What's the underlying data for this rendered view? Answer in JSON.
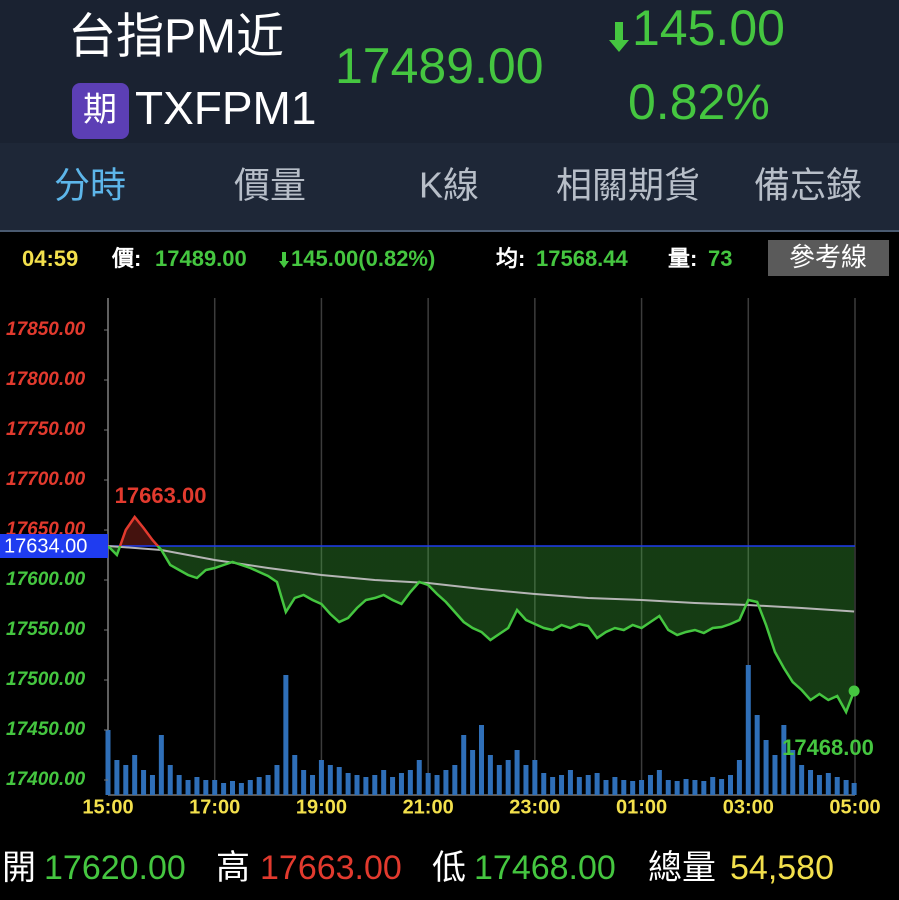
{
  "header": {
    "title": "台指PM近",
    "badge": "期",
    "symbol": "TXFPM1",
    "price": "17489.00",
    "change": "145.00",
    "change_pct": "0.82%"
  },
  "tabs": [
    "分時",
    "價量",
    "K線",
    "相關期貨",
    "備忘錄"
  ],
  "active_tab": 0,
  "info": {
    "time": "04:59",
    "price_label": "價:",
    "price": "17489.00",
    "change": "145.00(0.82%)",
    "avg_label": "均:",
    "avg": "17568.44",
    "vol_label": "量:",
    "vol": "73",
    "button": "參考線"
  },
  "footer": [
    {
      "label": "開",
      "value": "17620.00"
    },
    {
      "label": "高",
      "value": "17663.00"
    },
    {
      "label": "低",
      "value": "17468.00"
    },
    {
      "label": "總量",
      "value": "54,580"
    }
  ],
  "chart_data": {
    "type": "line",
    "x": [
      "15:00",
      "15:10",
      "15:20",
      "15:30",
      "15:40",
      "15:50",
      "16:00",
      "16:10",
      "16:20",
      "16:30",
      "16:40",
      "16:50",
      "17:00",
      "17:10",
      "17:20",
      "17:30",
      "17:40",
      "17:50",
      "18:00",
      "18:10",
      "18:20",
      "18:30",
      "18:40",
      "18:50",
      "19:00",
      "19:10",
      "19:20",
      "19:30",
      "19:40",
      "19:50",
      "20:00",
      "20:10",
      "20:20",
      "20:30",
      "20:40",
      "20:50",
      "21:00",
      "21:10",
      "21:20",
      "21:30",
      "21:40",
      "21:50",
      "22:00",
      "22:10",
      "22:20",
      "22:30",
      "22:40",
      "22:50",
      "23:00",
      "23:10",
      "23:20",
      "23:30",
      "23:40",
      "23:50",
      "00:00",
      "00:10",
      "00:20",
      "00:30",
      "00:40",
      "00:50",
      "01:00",
      "01:10",
      "01:20",
      "01:30",
      "01:40",
      "01:50",
      "02:00",
      "02:10",
      "02:20",
      "02:30",
      "02:40",
      "02:50",
      "03:00",
      "03:10",
      "03:20",
      "03:30",
      "03:40",
      "03:50",
      "04:00",
      "04:10",
      "04:20",
      "04:30",
      "04:40",
      "04:50",
      "04:59"
    ],
    "series": [
      {
        "colors": {
          "above": "#e23a2e",
          "below": "#45c640"
        },
        "values": [
          17634,
          17625,
          17650,
          17663,
          17652,
          17640,
          17630,
          17615,
          17610,
          17605,
          17602,
          17610,
          17612,
          17615,
          17618,
          17615,
          17612,
          17608,
          17604,
          17598,
          17568,
          17582,
          17585,
          17580,
          17576,
          17566,
          17558,
          17562,
          17572,
          17580,
          17582,
          17585,
          17580,
          17576,
          17588,
          17598,
          17595,
          17586,
          17578,
          17568,
          17558,
          17552,
          17548,
          17540,
          17546,
          17552,
          17570,
          17560,
          17556,
          17552,
          17550,
          17555,
          17552,
          17556,
          17554,
          17542,
          17548,
          17552,
          17550,
          17555,
          17552,
          17558,
          17564,
          17550,
          17545,
          17548,
          17550,
          17547,
          17552,
          17553,
          17556,
          17560,
          17580,
          17578,
          17555,
          17528,
          17512,
          17498,
          17490,
          17480,
          17486,
          17480,
          17484,
          17468,
          17489
        ]
      },
      {
        "color": "#b5b5b5",
        "x": [
          "15:00",
          "16:00",
          "17:00",
          "18:00",
          "19:00",
          "20:00",
          "21:00",
          "22:00",
          "23:00",
          "00:00",
          "01:00",
          "02:00",
          "03:00",
          "04:00",
          "04:59"
        ],
        "values": [
          17634,
          17630,
          17620,
          17612,
          17605,
          17600,
          17597,
          17591,
          17586,
          17582,
          17580,
          17577,
          17575,
          17572,
          17568.44
        ]
      }
    ],
    "volume": {
      "color": "#2f6fb8",
      "ylim": [
        0,
        497
      ],
      "values": [
        65,
        35,
        30,
        40,
        25,
        20,
        60,
        30,
        20,
        15,
        18,
        15,
        15,
        12,
        14,
        12,
        15,
        18,
        20,
        30,
        120,
        40,
        25,
        20,
        35,
        30,
        28,
        22,
        20,
        18,
        20,
        25,
        18,
        22,
        25,
        35,
        22,
        20,
        25,
        30,
        60,
        45,
        70,
        40,
        30,
        35,
        45,
        30,
        35,
        22,
        18,
        20,
        25,
        18,
        20,
        22,
        15,
        18,
        15,
        14,
        15,
        20,
        25,
        15,
        14,
        16,
        15,
        14,
        18,
        16,
        20,
        35,
        130,
        80,
        55,
        40,
        70,
        45,
        30,
        25,
        20,
        22,
        18,
        15,
        12
      ]
    },
    "reference": {
      "value": 17634,
      "label": "17634.00",
      "color": "#1f3cf0"
    },
    "annotations": [
      {
        "value": 17663,
        "label": "17663.00"
      },
      {
        "value": 17468,
        "label": "17468.00"
      }
    ],
    "xlim": [
      "15:00",
      "05:00"
    ],
    "xticks": [
      "15:00",
      "17:00",
      "19:00",
      "21:00",
      "23:00",
      "01:00",
      "03:00",
      "05:00"
    ],
    "ylim": [
      17385,
      17882
    ],
    "yticks": [
      {
        "value": 17400,
        "label": "17400.00"
      },
      {
        "value": 17450,
        "label": "17450.00"
      },
      {
        "value": 17500,
        "label": "17500.00"
      },
      {
        "value": 17550,
        "label": "17550.00"
      },
      {
        "value": 17600,
        "label": "17600.00"
      },
      {
        "value": 17650,
        "label": "17650.00"
      },
      {
        "value": 17700,
        "label": "17700.00"
      },
      {
        "value": 17750,
        "label": "17750.00"
      },
      {
        "value": 17800,
        "label": "17800.00"
      },
      {
        "value": 17850,
        "label": "17850.00"
      }
    ],
    "grid": true
  }
}
